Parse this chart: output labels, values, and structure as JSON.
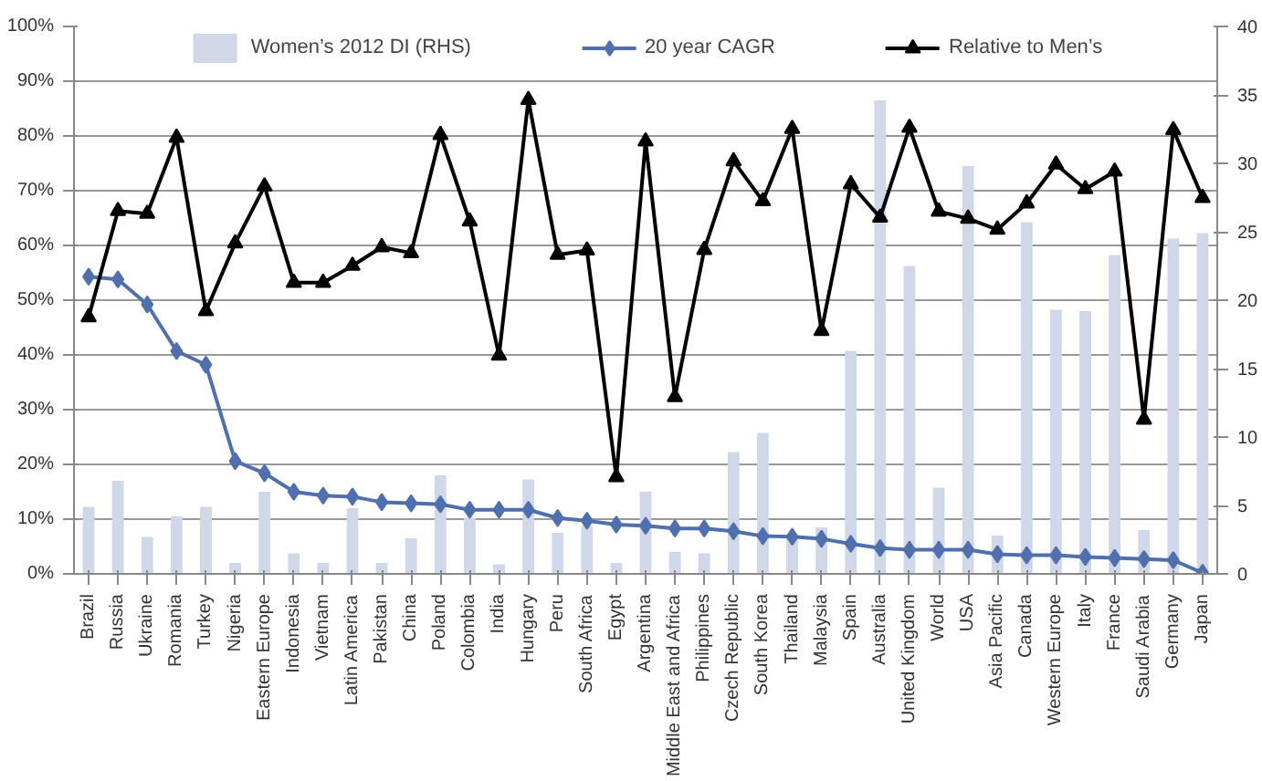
{
  "chart_data": {
    "type": "line",
    "categories": [
      "Brazil",
      "Russia",
      "Ukraine",
      "Romania",
      "Turkey",
      "Nigeria",
      "Eastern Europe",
      "Indonesia",
      "Vietnam",
      "Latin America",
      "Pakistan",
      "China",
      "Poland",
      "Colombia",
      "India",
      "Hungary",
      "Peru",
      "South Africa",
      "Egypt",
      "Argentina",
      "Middle East and Africa",
      "Philippines",
      "Czech Republic",
      "South Korea",
      "Thailand",
      "Malaysia",
      "Spain",
      "Australia",
      "United Kingdom",
      "World",
      "USA",
      "Asia Pacific",
      "Canada",
      "Western Europe",
      "Italy",
      "France",
      "Saudi Arabia",
      "Germany",
      "Japan"
    ],
    "series": [
      {
        "name": "Women’s 2012 DI (RHS)",
        "type": "bar",
        "axis": "y2",
        "color": "#cfd7e8",
        "values": [
          4.9,
          6.8,
          2.7,
          4.2,
          4.9,
          0.8,
          6.0,
          1.5,
          0.8,
          4.8,
          0.8,
          2.6,
          7.2,
          4.1,
          0.7,
          6.9,
          3.0,
          3.5,
          0.8,
          6.0,
          1.6,
          1.5,
          8.9,
          10.3,
          2.8,
          3.4,
          16.3,
          34.6,
          22.5,
          6.3,
          29.8,
          2.8,
          25.7,
          19.3,
          19.2,
          23.3,
          3.2,
          24.5,
          24.9
        ]
      },
      {
        "name": "20 year CAGR",
        "marker": "diamond",
        "color": "#4f6fad",
        "values": [
          54.3,
          53.8,
          49.2,
          40.7,
          38.2,
          20.6,
          18.4,
          15.0,
          14.3,
          14.1,
          13.1,
          12.9,
          12.7,
          11.7,
          11.7,
          11.7,
          10.2,
          9.7,
          9.0,
          8.8,
          8.3,
          8.3,
          7.8,
          6.9,
          6.8,
          6.4,
          5.5,
          4.7,
          4.4,
          4.4,
          4.4,
          3.6,
          3.4,
          3.4,
          3.1,
          2.9,
          2.7,
          2.5,
          0.2
        ]
      },
      {
        "name": "Relative to Men’s",
        "marker": "triangle",
        "color": "#000000",
        "values": [
          46.9,
          66.3,
          65.8,
          79.7,
          48.0,
          60.4,
          70.8,
          53.2,
          53.2,
          56.3,
          59.7,
          58.6,
          80.2,
          64.4,
          39.9,
          86.6,
          58.3,
          59.1,
          17.7,
          79.0,
          32.3,
          59.2,
          75.4,
          68.1,
          81.3,
          44.4,
          71.2,
          65.1,
          81.5,
          66.2,
          64.9,
          62.9,
          67.7,
          74.8,
          70.3,
          73.5,
          28.2,
          81.1,
          68.7
        ]
      }
    ],
    "ylim": [
      0,
      100
    ],
    "yticks": [
      {
        "value": 0,
        "label": "0%"
      },
      {
        "value": 10,
        "label": "10%"
      },
      {
        "value": 20,
        "label": "20%"
      },
      {
        "value": 30,
        "label": "30%"
      },
      {
        "value": 40,
        "label": "40%"
      },
      {
        "value": 50,
        "label": "50%"
      },
      {
        "value": 60,
        "label": "60%"
      },
      {
        "value": 70,
        "label": "70%"
      },
      {
        "value": 80,
        "label": "80%"
      },
      {
        "value": 90,
        "label": "90%"
      },
      {
        "value": 100,
        "label": "100%"
      }
    ],
    "y2lim": [
      0,
      40
    ],
    "y2ticks": [
      0,
      5,
      10,
      15,
      20,
      25,
      30,
      35,
      40
    ],
    "grid": "y",
    "legend": "top",
    "line_style": "solid"
  }
}
